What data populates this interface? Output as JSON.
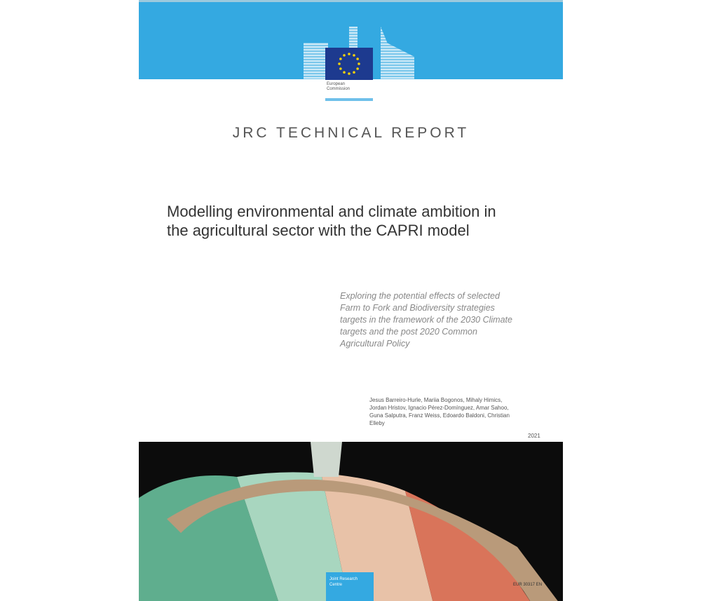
{
  "header": {
    "logo_text": "European Commission",
    "series": "JRC TECHNICAL REPORT"
  },
  "title": "Modelling environmental and climate ambition in the agricultural sector with the CAPRI model",
  "subtitle": "Exploring the potential effects of selected Farm to Fork and Biodiversity strategies targets in the framework of the 2030 Climate targets and the post 2020 Common Agricultural Policy",
  "authors": "Jesus Barreiro-Hurle, Mariia Bogonos, Mihaly Himics, Jordan Hristov, Ignacio Pérez-Domínguez, Amar Sahoo, Guna Salputra, Franz Weiss, Edoardo Baldoni, Christian Elleby",
  "year": "2021",
  "footer": {
    "jrc_logo_text": "Joint Research Centre",
    "report_number": "EUR 30317 EN"
  },
  "colors": {
    "brand_blue": "#34a9e1",
    "flag_blue": "#1d3a8f",
    "star_yellow": "#f5d20a"
  }
}
